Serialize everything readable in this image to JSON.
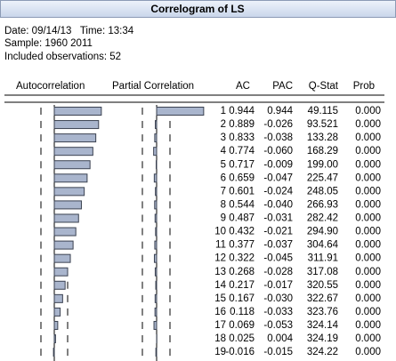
{
  "window": {
    "title": "Correlogram of LS"
  },
  "info": [
    "Date: 09/14/13   Time: 13:34",
    "Sample: 1960 2011",
    "Included observations: 52"
  ],
  "columns": [
    "Autocorrelation",
    "Partial Correlation",
    "AC",
    "PAC",
    "Q-Stat",
    "Prob"
  ],
  "rows": [
    [
      "1",
      "0.944",
      "0.944",
      "49.115",
      "0.000"
    ],
    [
      "2",
      "0.889",
      "-0.026",
      "93.521",
      "0.000"
    ],
    [
      "3",
      "0.833",
      "-0.038",
      "133.28",
      "0.000"
    ],
    [
      "4",
      "0.774",
      "-0.060",
      "168.29",
      "0.000"
    ],
    [
      "5",
      "0.717",
      "-0.009",
      "199.00",
      "0.000"
    ],
    [
      "6",
      "0.659",
      "-0.047",
      "225.47",
      "0.000"
    ],
    [
      "7",
      "0.601",
      "-0.024",
      "248.05",
      "0.000"
    ],
    [
      "8",
      "0.544",
      "-0.040",
      "266.93",
      "0.000"
    ],
    [
      "9",
      "0.487",
      "-0.031",
      "282.42",
      "0.000"
    ],
    [
      "10",
      "0.432",
      "-0.021",
      "294.90",
      "0.000"
    ],
    [
      "11",
      "0.377",
      "-0.037",
      "304.64",
      "0.000"
    ],
    [
      "12",
      "0.322",
      "-0.045",
      "311.91",
      "0.000"
    ],
    [
      "13",
      "0.268",
      "-0.028",
      "317.08",
      "0.000"
    ],
    [
      "14",
      "0.217",
      "-0.017",
      "320.55",
      "0.000"
    ],
    [
      "15",
      "0.167",
      "-0.030",
      "322.67",
      "0.000"
    ],
    [
      "16",
      "0.118",
      "-0.033",
      "323.76",
      "0.000"
    ],
    [
      "17",
      "0.069",
      "-0.053",
      "324.14",
      "0.000"
    ],
    [
      "18",
      "0.025",
      "0.004",
      "324.19",
      "0.000"
    ],
    [
      "19",
      "-0.016",
      "-0.015",
      "324.22",
      "0.000"
    ]
  ]
}
